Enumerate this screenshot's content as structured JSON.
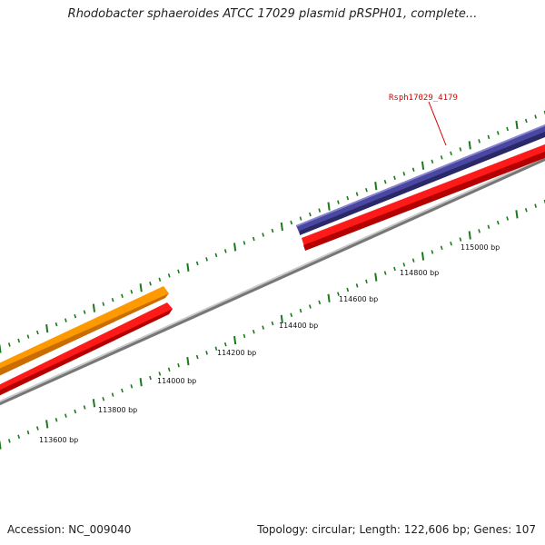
{
  "header": {
    "title": "Rhodobacter sphaeroides ATCC 17029 plasmid pRSPH01, complete..."
  },
  "footer": {
    "accession": "Accession: NC_009040",
    "summary": "Topology: circular; Length: 122,606 bp; Genes: 107"
  },
  "map": {
    "gene_label": "Rsph17029_4179",
    "position_labels": [
      "113600 bp",
      "113800 bp",
      "114000 bp",
      "114200 bp",
      "114400 bp",
      "114600 bp",
      "114800 bp",
      "115000 bp"
    ],
    "colors": {
      "backbone": "#808080",
      "forward_gene": "#ff9900",
      "reverse_gene": "#ff0000",
      "highlight_gene": "#3c3a8c",
      "tick": "#1a7a1a",
      "label": "#d40000"
    }
  }
}
